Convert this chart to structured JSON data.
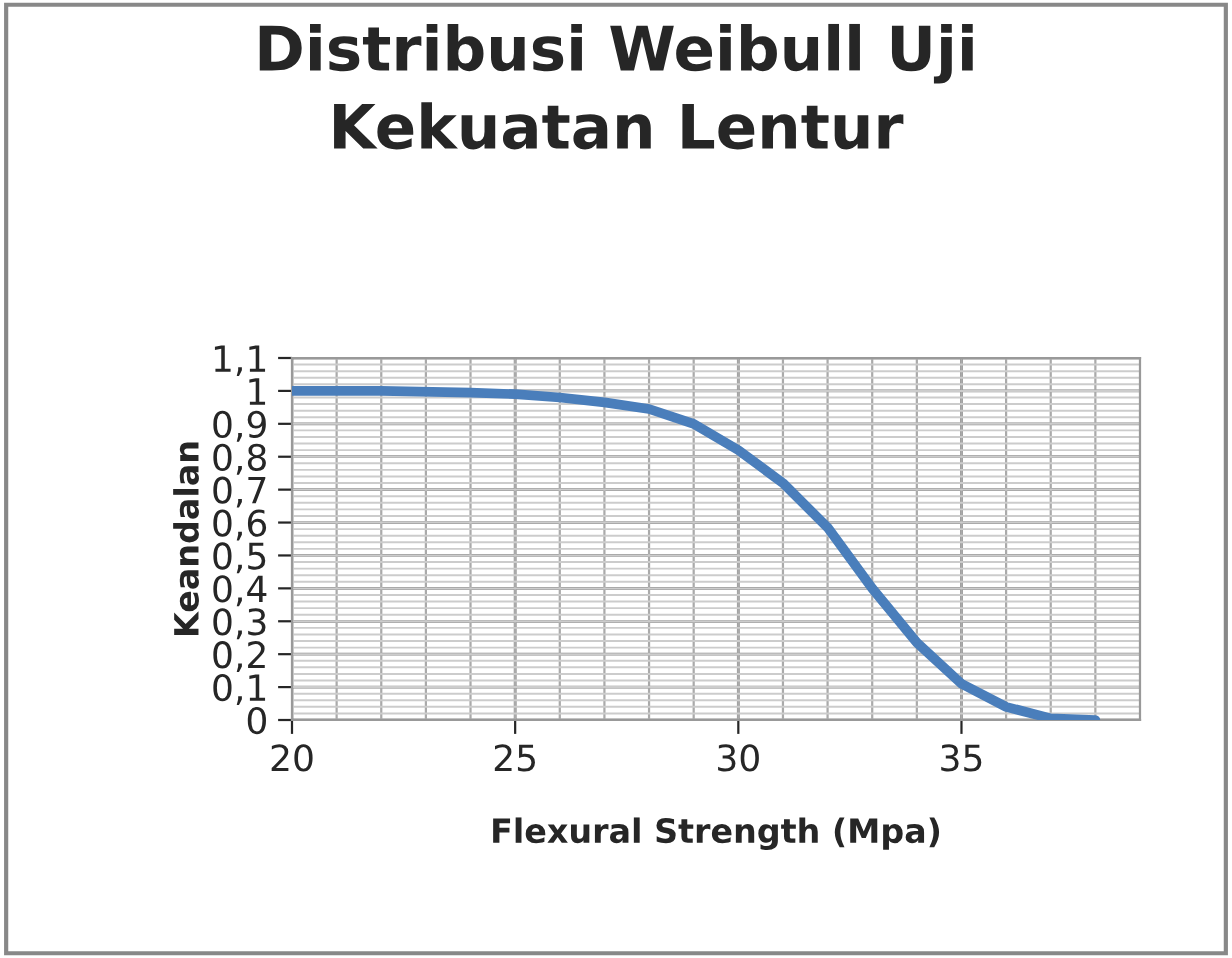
{
  "chart_data": {
    "type": "line",
    "title": "Distribusi Weibull Uji\nKekuatan Lentur",
    "xlabel": "Flexural Strength (Mpa)",
    "ylabel": "Keandalan",
    "x": [
      20,
      22,
      24,
      25,
      26,
      27,
      28,
      29,
      30,
      31,
      32,
      33,
      34,
      35,
      36,
      37,
      38
    ],
    "series": [
      {
        "color": "#4a7ebb",
        "values": [
          1.0,
          1.0,
          0.995,
          0.99,
          0.98,
          0.965,
          0.945,
          0.9,
          0.82,
          0.72,
          0.585,
          0.4,
          0.235,
          0.11,
          0.04,
          0.005,
          0.0
        ]
      }
    ],
    "xlim": [
      20,
      39
    ],
    "xticks": [
      20,
      25,
      30,
      35
    ],
    "ylim": [
      0,
      1.1
    ],
    "yticks": [
      {
        "value": 0,
        "label": "0"
      },
      {
        "value": 0.1,
        "label": "0,1"
      },
      {
        "value": 0.2,
        "label": "0,2"
      },
      {
        "value": 0.3,
        "label": "0,3"
      },
      {
        "value": 0.4,
        "label": "0,4"
      },
      {
        "value": 0.5,
        "label": "0,5"
      },
      {
        "value": 0.6,
        "label": "0,6"
      },
      {
        "value": 0.7,
        "label": "0,7"
      },
      {
        "value": 0.8,
        "label": "0,8"
      },
      {
        "value": 0.9,
        "label": "0,9"
      },
      {
        "value": 1,
        "label": "1"
      },
      {
        "value": 1.1,
        "label": "1,1"
      }
    ],
    "grid": true,
    "marker": "none",
    "line_style": "solid"
  }
}
